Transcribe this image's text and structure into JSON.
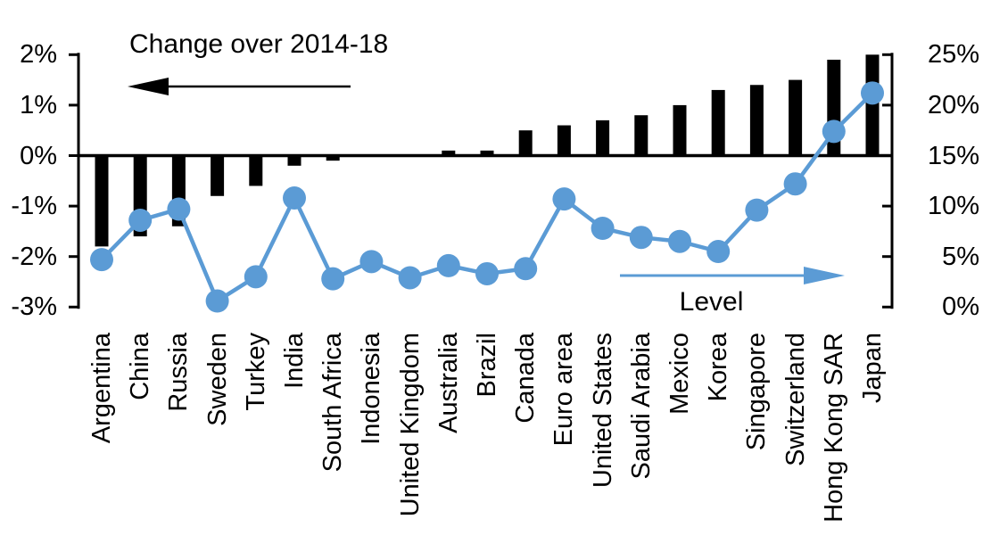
{
  "chart_data": {
    "type": "bar",
    "subtype": "combo-bar-line-dual-axis",
    "categories": [
      "Argentina",
      "China",
      "Russia",
      "Sweden",
      "Turkey",
      "India",
      "South Africa",
      "Indonesia",
      "United Kingdom",
      "Australia",
      "Brazil",
      "Canada",
      "Euro area",
      "United States",
      "Saudi Arabia",
      "Mexico",
      "Korea",
      "Singapore",
      "Switzerland",
      "Hong Kong SAR",
      "Japan"
    ],
    "series": [
      {
        "name": "Change over 2014-18",
        "type": "bar",
        "axis": "left",
        "color": "#000000",
        "values": [
          -1.8,
          -1.6,
          -1.4,
          -0.8,
          -0.6,
          -0.2,
          -0.1,
          0,
          0,
          0.1,
          0.1,
          0.5,
          0.6,
          0.7,
          0.8,
          1.0,
          1.3,
          1.4,
          1.5,
          1.9,
          2.0
        ]
      },
      {
        "name": "Level",
        "type": "line",
        "axis": "right",
        "color": "#5B9BD5",
        "values": [
          4.7,
          8.6,
          9.7,
          0.6,
          3.0,
          10.8,
          2.8,
          4.5,
          2.9,
          4.1,
          3.3,
          3.8,
          10.7,
          7.8,
          6.9,
          6.5,
          5.5,
          9.6,
          12.2,
          17.4,
          21.2
        ]
      }
    ],
    "left_axis": {
      "min": -3,
      "max": 2,
      "unit": "%",
      "tick_values": [
        2,
        1,
        0,
        -1,
        -2,
        -3
      ],
      "tick_labels": [
        "2%",
        "1%",
        "0%",
        "-1%",
        "-2%",
        "-3%"
      ]
    },
    "right_axis": {
      "min": 0,
      "max": 25,
      "unit": "%",
      "tick_values": [
        25,
        20,
        15,
        10,
        5,
        0
      ],
      "tick_labels": [
        "25%",
        "20%",
        "15%",
        "10%",
        "5%",
        "0%"
      ]
    },
    "annotations": {
      "change_label": "Change over 2014-18",
      "level_label": "Level",
      "change_arrow_direction": "left",
      "level_arrow_direction": "right"
    },
    "grid": false,
    "legend_position": "in-plot-annotations",
    "colors": {
      "bar": "#000000",
      "line": "#5B9BD5",
      "text": "#000000",
      "background": "#FFFFFF"
    }
  }
}
